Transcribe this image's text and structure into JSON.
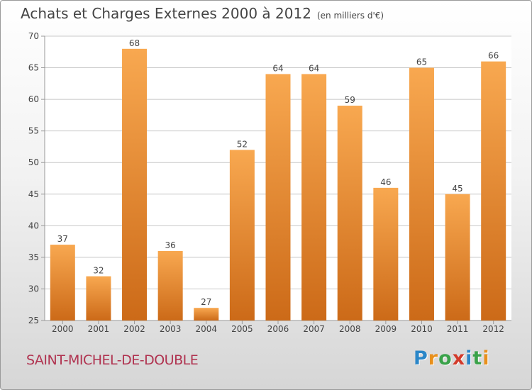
{
  "title": "Achats et Charges Externes 2000 à 2012",
  "unit_note": "(en milliers d'€)",
  "commune": "SAINT-MICHEL-DE-DOUBLE",
  "brand": {
    "letters": [
      "P",
      "r",
      "o",
      "x",
      "i",
      "t",
      "i"
    ],
    "colors": [
      "#2a86c8",
      "#e8901c",
      "#3aa24a",
      "#d23a2a",
      "#2a86c8",
      "#3aa24a",
      "#e8901c"
    ]
  },
  "colors": {
    "bar_light": "#f8a850",
    "bar_dark": "#cc6a18",
    "grid": "#c8c8c8",
    "axis": "#999999"
  },
  "chart_data": {
    "type": "bar",
    "title": "Achats et Charges Externes 2000 à 2012",
    "categories": [
      "2000",
      "2001",
      "2002",
      "2003",
      "2004",
      "2005",
      "2006",
      "2007",
      "2008",
      "2009",
      "2010",
      "2011",
      "2012"
    ],
    "values": [
      37,
      32,
      68,
      36,
      27,
      52,
      64,
      64,
      59,
      46,
      65,
      45,
      66
    ],
    "ylim": [
      25,
      70
    ],
    "yticks": [
      25,
      30,
      35,
      40,
      45,
      50,
      55,
      60,
      65,
      70
    ],
    "grid": true,
    "xlabel": "",
    "ylabel": ""
  }
}
